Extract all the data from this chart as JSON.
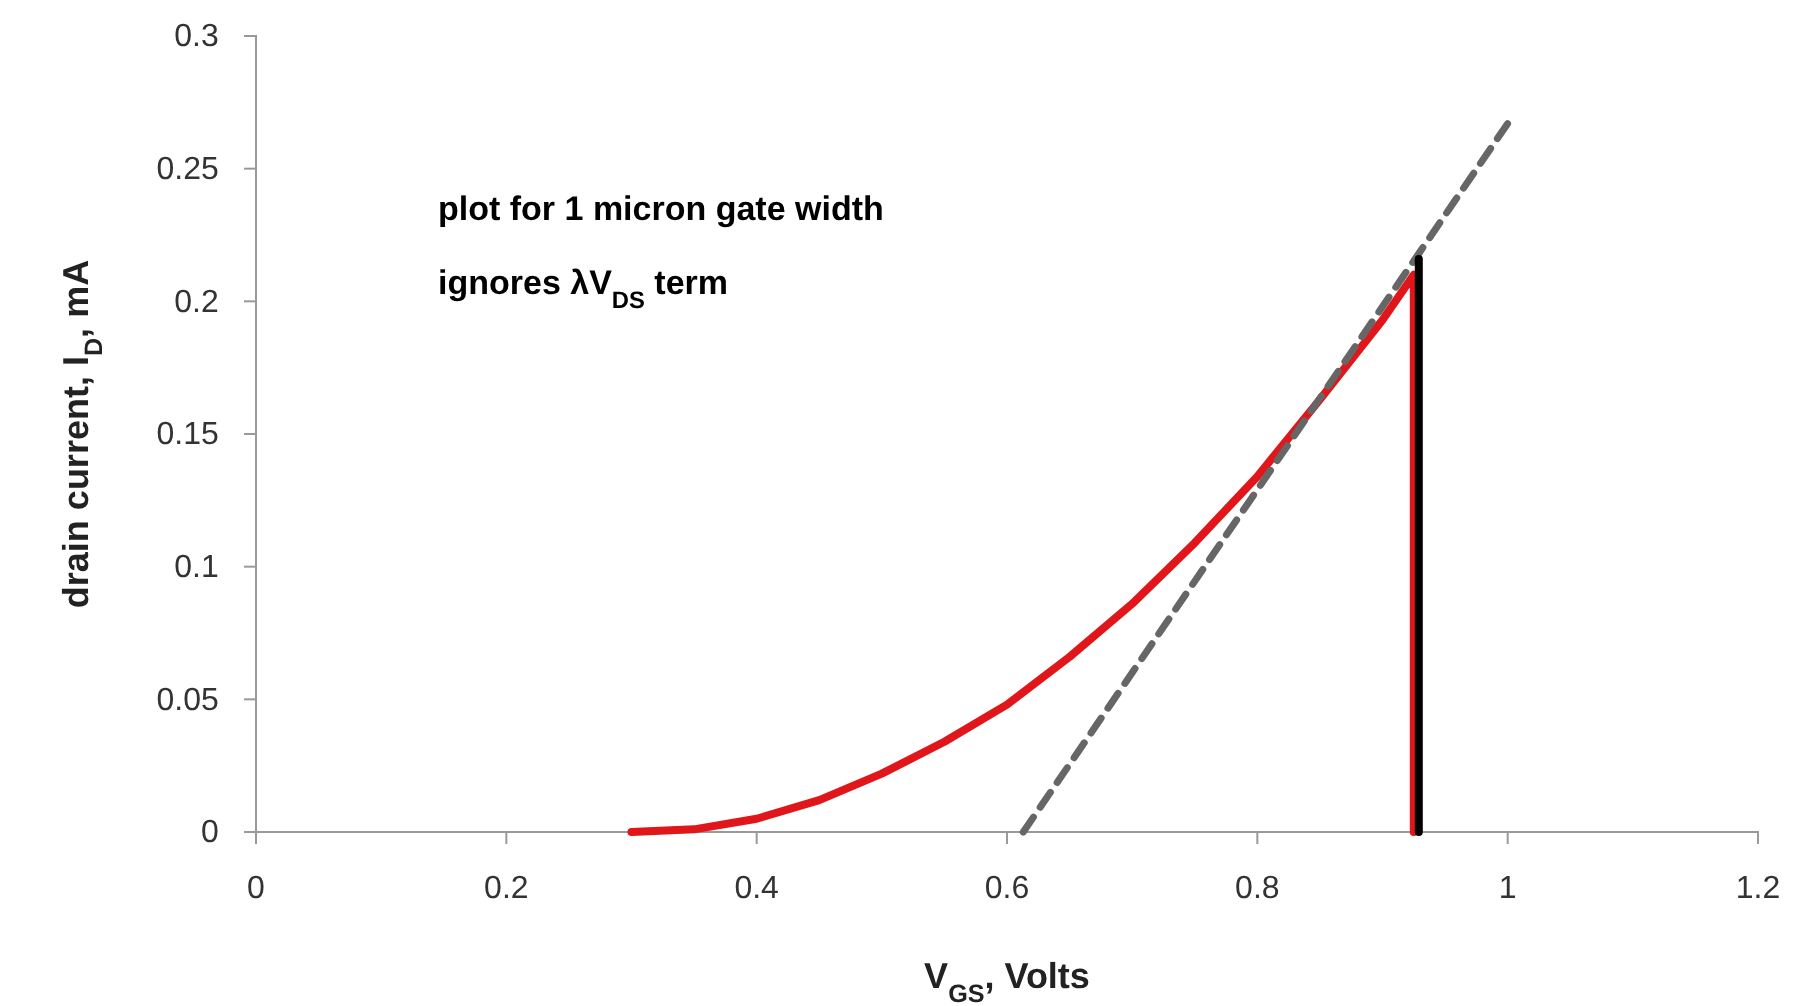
{
  "chart_data": {
    "type": "line",
    "xlabel": "V$_{GS}$, Volts",
    "ylabel": "drain current, I$_{D}$, mA",
    "xlim": [
      0,
      1.2
    ],
    "ylim": [
      0,
      0.3
    ],
    "xticks": [
      0,
      0.2,
      0.4,
      0.6,
      0.8,
      1,
      1.2
    ],
    "yticks": [
      0,
      0.05,
      0.1,
      0.15,
      0.2,
      0.25,
      0.3
    ],
    "grid": false,
    "marker": "none",
    "annotations": [
      "plot for 1 micron gate width",
      "ignores λV$_{DS}$ term"
    ],
    "series": [
      {
        "color": "#e0161b",
        "line_style": "solid",
        "x": [
          0.3,
          0.35,
          0.4,
          0.45,
          0.5,
          0.55,
          0.6,
          0.65,
          0.7,
          0.75,
          0.8,
          0.85,
          0.9,
          0.925,
          0.925
        ],
        "values": [
          0,
          0.001,
          0.005,
          0.012,
          0.022,
          0.034,
          0.048,
          0.066,
          0.086,
          0.109,
          0.134,
          0.163,
          0.193,
          0.21,
          0
        ]
      },
      {
        "color": "#666666",
        "line_style": "dashed",
        "x": [
          0.613,
          1.0
        ],
        "values": [
          0,
          0.267
        ]
      },
      {
        "color": "#000000",
        "line_style": "solid",
        "x": [
          0.929,
          0.929
        ],
        "values": [
          0,
          0.216
        ]
      }
    ]
  }
}
